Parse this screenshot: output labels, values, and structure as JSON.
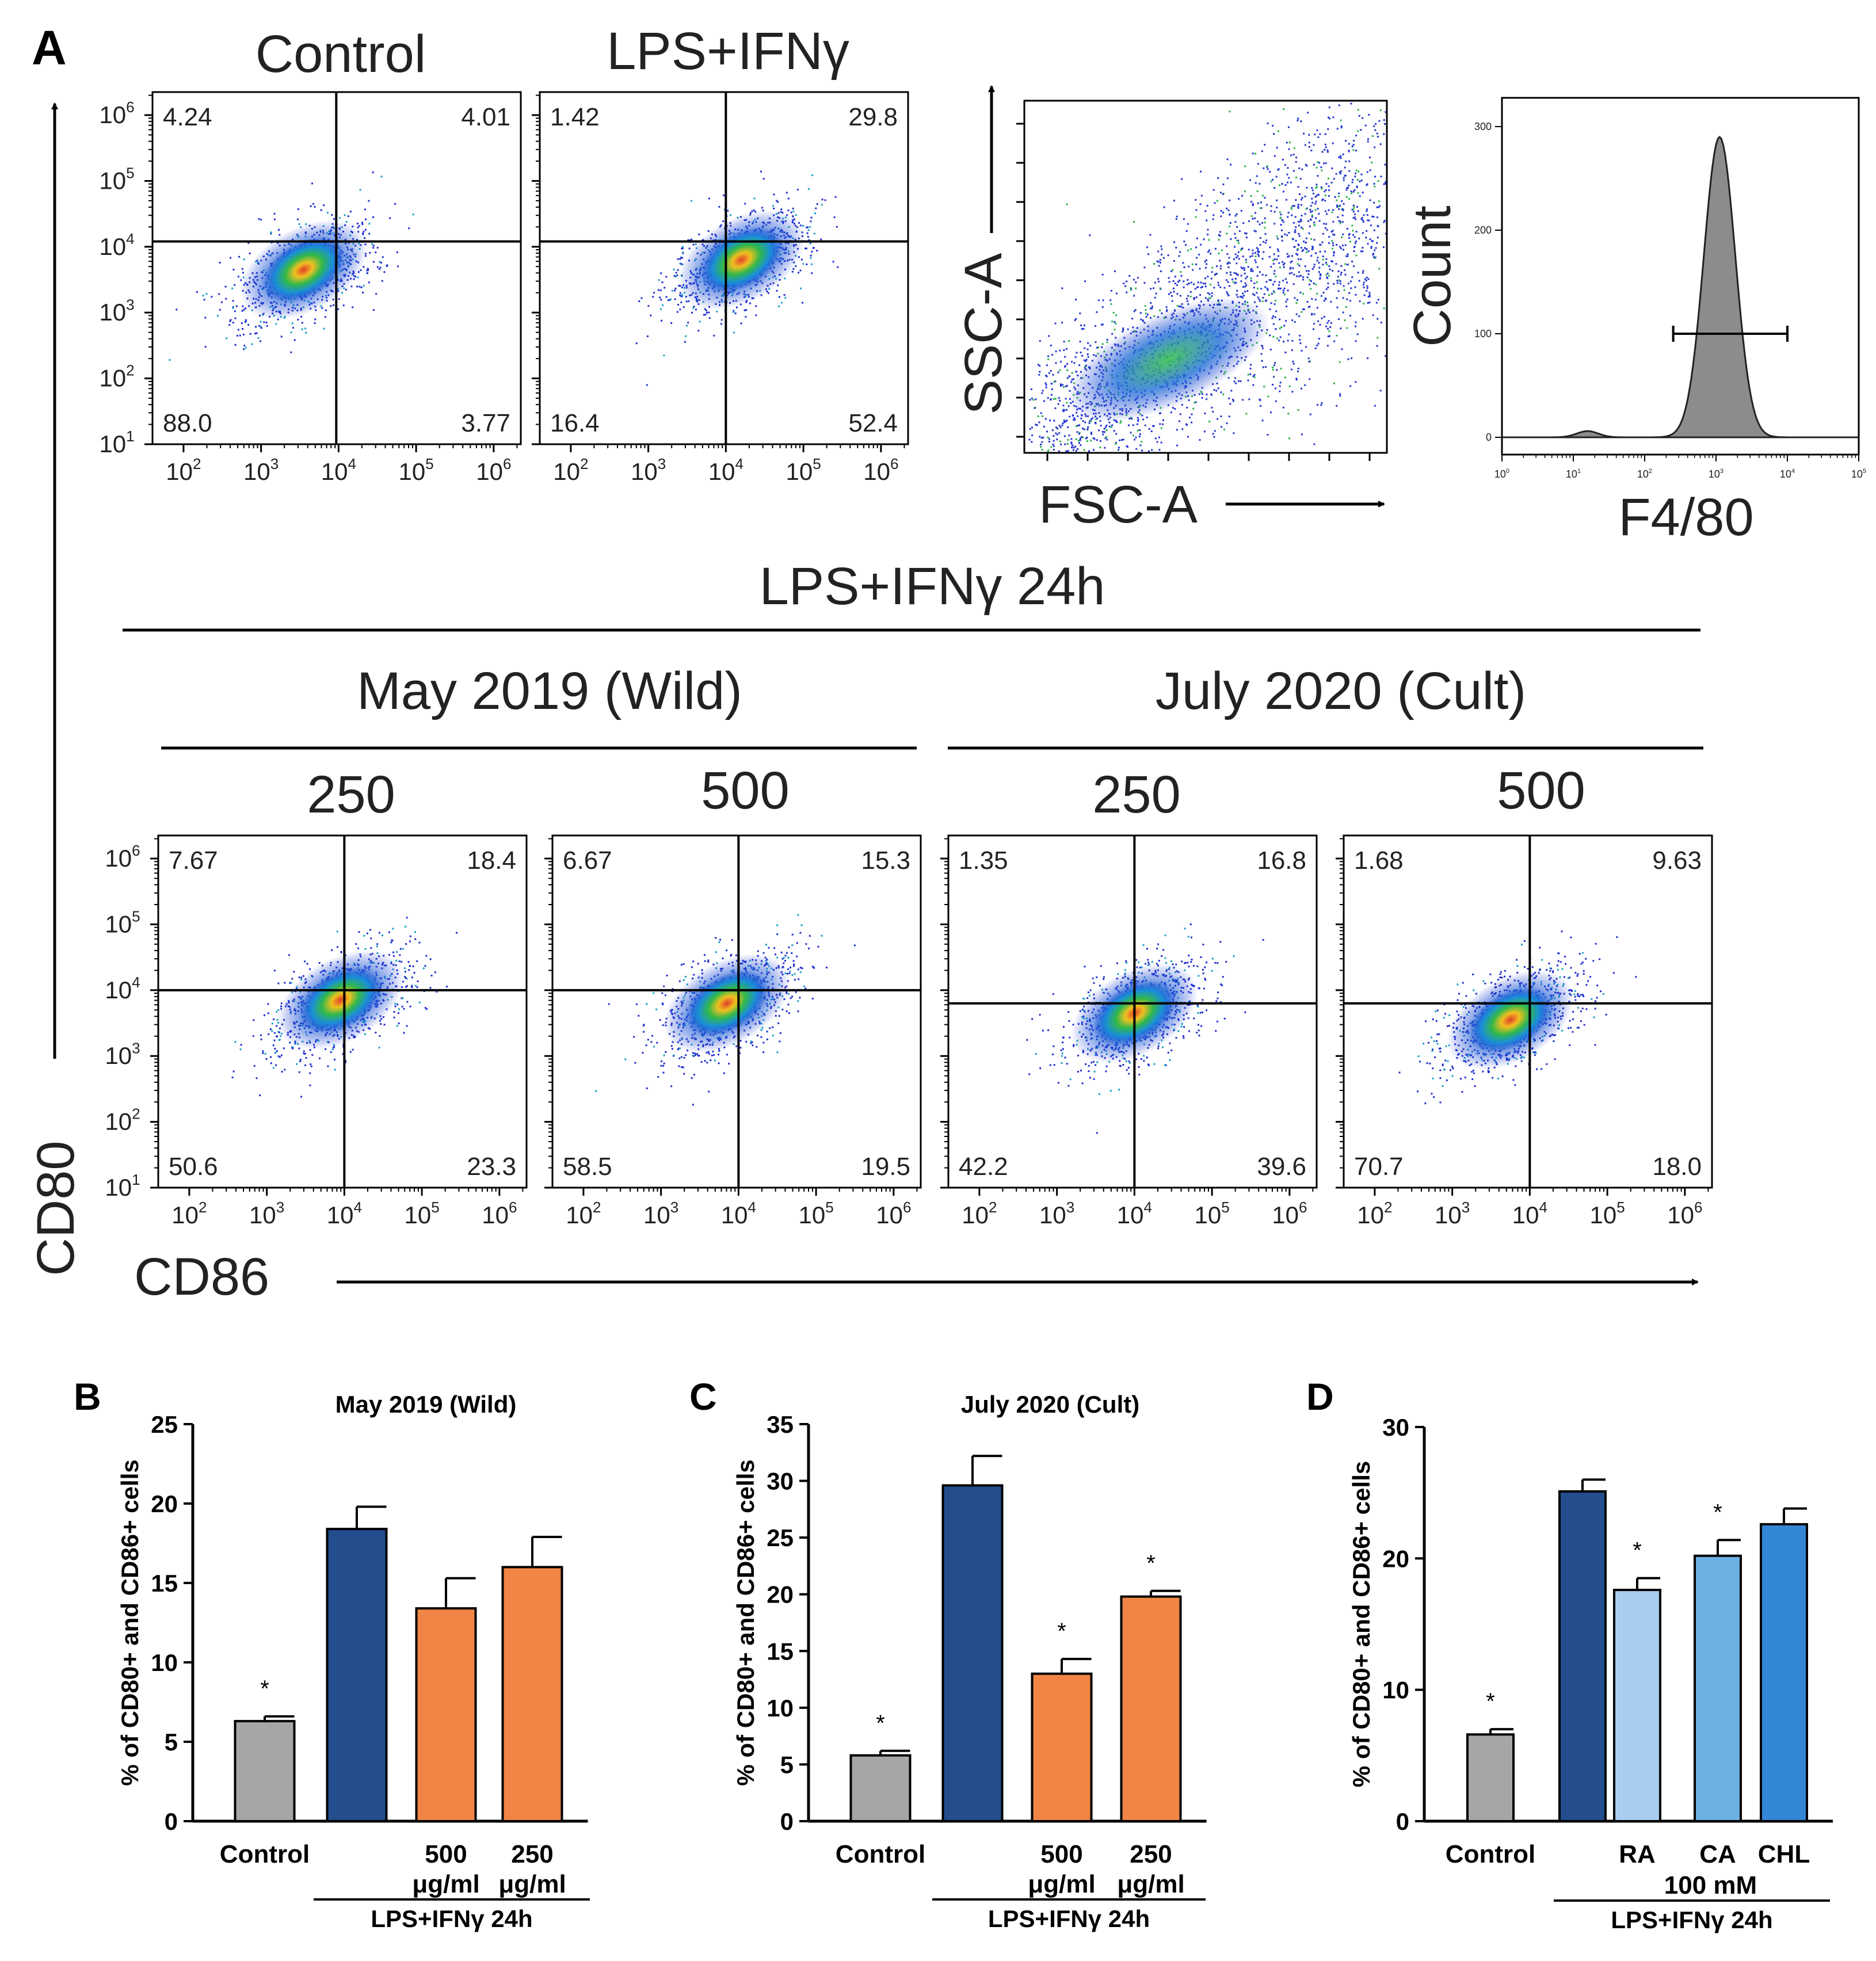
{
  "panel_letters": {
    "A": "A",
    "B": "B",
    "C": "C",
    "D": "D"
  },
  "panel_a": {
    "top_titles": {
      "control": "Control",
      "lps": "LPS+IFNγ"
    },
    "header": "LPS+IFNγ 24h",
    "groups": {
      "wild": "May 2019 (Wild)",
      "cult": "July 2020 (Cult)"
    },
    "doses": {
      "wild_250": "250",
      "wild_500": "500",
      "cult_250": "250",
      "cult_500": "500"
    },
    "axis_labels": {
      "y": "CD80",
      "x": "CD86",
      "ssc": "SSC-A",
      "fsc": "FSC-A",
      "count": "Count",
      "f480": "F4/80"
    },
    "log_ticks": [
      {
        "base": "10",
        "exp": "1"
      },
      {
        "base": "10",
        "exp": "2"
      },
      {
        "base": "10",
        "exp": "3"
      },
      {
        "base": "10",
        "exp": "4"
      },
      {
        "base": "10",
        "exp": "5"
      },
      {
        "base": "10",
        "exp": "6"
      }
    ],
    "histogram_y_ticks": [
      "0",
      "100",
      "200",
      "300"
    ],
    "histogram_x_ticks": [
      {
        "base": "10",
        "exp": "0"
      },
      {
        "base": "10",
        "exp": "1"
      },
      {
        "base": "10",
        "exp": "2"
      },
      {
        "base": "10",
        "exp": "3"
      },
      {
        "base": "10",
        "exp": "4"
      },
      {
        "base": "10",
        "exp": "5"
      }
    ],
    "plots": [
      {
        "id": "control",
        "q": {
          "ul": "4.24",
          "ur": "4.01",
          "ll": "88.0",
          "lr": "3.77"
        },
        "gate": {
          "x": 3.97,
          "y": 4.08
        },
        "center": {
          "x": 3.55,
          "y": 3.65
        }
      },
      {
        "id": "lps",
        "q": {
          "ul": "1.42",
          "ur": "29.8",
          "ll": "16.4",
          "lr": "52.4"
        },
        "gate": {
          "x": 4.0,
          "y": 4.08
        },
        "center": {
          "x": 4.2,
          "y": 3.8
        }
      },
      {
        "id": "wild_250",
        "q": {
          "ul": "7.67",
          "ur": "18.4",
          "ll": "50.6",
          "lr": "23.3"
        },
        "gate": {
          "x": 4.0,
          "y": 4.0
        },
        "center": {
          "x": 3.95,
          "y": 3.85
        }
      },
      {
        "id": "wild_500",
        "q": {
          "ul": "6.67",
          "ur": "15.3",
          "ll": "58.5",
          "lr": "19.5"
        },
        "gate": {
          "x": 4.0,
          "y": 4.0
        },
        "center": {
          "x": 3.85,
          "y": 3.8
        }
      },
      {
        "id": "cult_250",
        "q": {
          "ul": "1.35",
          "ur": "16.8",
          "ll": "42.2",
          "lr": "39.6"
        },
        "gate": {
          "x": 4.0,
          "y": 3.8
        },
        "center": {
          "x": 4.0,
          "y": 3.65
        }
      },
      {
        "id": "cult_500",
        "q": {
          "ul": "1.68",
          "ur": "9.63",
          "ll": "70.7",
          "lr": "18.0"
        },
        "gate": {
          "x": 4.0,
          "y": 3.8
        },
        "center": {
          "x": 3.75,
          "y": 3.55
        }
      }
    ]
  },
  "chart_data": [
    {
      "type": "bar",
      "panel": "B",
      "title": "May 2019 (Wild)",
      "ylabel": "% of CD80+ and CD86+ cells",
      "ylim": [
        0,
        25
      ],
      "yticks": [
        "0",
        "5",
        "10",
        "15",
        "20",
        "25"
      ],
      "categories": [
        "Control",
        "",
        "500 μg/ml",
        "250 μg/ml"
      ],
      "category_lines": [
        [
          "Control"
        ],
        [
          ""
        ],
        [
          "500",
          "μg/ml"
        ],
        [
          "250",
          "μg/ml"
        ]
      ],
      "values": [
        6.3,
        18.4,
        13.4,
        16.0
      ],
      "errors": [
        0.3,
        1.4,
        1.9,
        1.9
      ],
      "significance": [
        "*",
        "",
        "",
        ""
      ],
      "colors": [
        "#a6a6a6",
        "#234d8c",
        "#f08545",
        "#f08545"
      ],
      "group_label": "LPS+IFNγ 24h",
      "sub_label": ""
    },
    {
      "type": "bar",
      "panel": "C",
      "title": "July 2020 (Cult)",
      "ylabel": "% of CD80+ and CD86+ cells",
      "ylim": [
        0,
        35
      ],
      "yticks": [
        "0",
        "5",
        "10",
        "15",
        "20",
        "25",
        "30",
        "35"
      ],
      "categories": [
        "Control",
        "",
        "500 μg/ml",
        "250 μg/ml"
      ],
      "category_lines": [
        [
          "Control"
        ],
        [
          ""
        ],
        [
          "500",
          "μg/ml"
        ],
        [
          "250",
          "μg/ml"
        ]
      ],
      "values": [
        5.8,
        29.6,
        13.0,
        19.8
      ],
      "errors": [
        0.4,
        2.6,
        1.3,
        0.5
      ],
      "significance": [
        "*",
        "",
        "*",
        "*"
      ],
      "colors": [
        "#a6a6a6",
        "#234d8c",
        "#f08545",
        "#f08545"
      ],
      "group_label": "LPS+IFNγ 24h",
      "sub_label": ""
    },
    {
      "type": "bar",
      "panel": "D",
      "title": "",
      "ylabel": "% of CD80+ and CD86+ cells",
      "ylim": [
        0,
        30
      ],
      "yticks": [
        "0",
        "10",
        "20",
        "30"
      ],
      "categories": [
        "Control",
        "",
        "RA",
        "CA",
        "CHL"
      ],
      "category_lines": [
        [
          "Control"
        ],
        [
          ""
        ],
        [
          "RA"
        ],
        [
          "CA"
        ],
        [
          "CHL"
        ]
      ],
      "values": [
        6.6,
        25.1,
        17.6,
        20.2,
        22.6
      ],
      "errors": [
        0.4,
        0.9,
        0.9,
        1.2,
        1.2
      ],
      "significance": [
        "*",
        "",
        "*",
        "*",
        ""
      ],
      "colors": [
        "#a6a6a6",
        "#234d8c",
        "#a9cdef",
        "#6cb0e3",
        "#3486d6"
      ],
      "group_label": "LPS+IFNγ 24h",
      "sub_label": "100 mM"
    }
  ]
}
